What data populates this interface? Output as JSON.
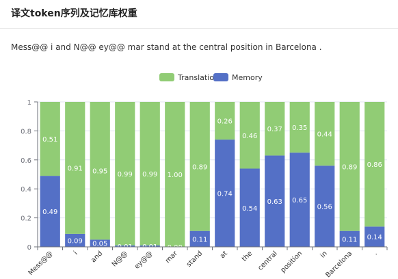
{
  "title": "译文token序列及记忆库权重",
  "sentence": "Mess@@ i and N@@ ey@@ mar stand at the central position in Barcelona .",
  "colors": {
    "translation": "#91cc75",
    "memory": "#5470c6"
  },
  "legend": {
    "translation": "Translation",
    "memory": "Memory"
  },
  "chart_data": {
    "type": "bar",
    "stacked": true,
    "categories": [
      "Mess@@",
      "i",
      "and",
      "N@@",
      "ey@@",
      "mar",
      "stand",
      "at",
      "the",
      "central",
      "position",
      "in",
      "Barcelona",
      "."
    ],
    "series": [
      {
        "name": "Memory",
        "values": [
          0.49,
          0.09,
          0.05,
          0.01,
          0.01,
          0.0,
          0.11,
          0.74,
          0.54,
          0.63,
          0.65,
          0.56,
          0.11,
          0.14
        ]
      },
      {
        "name": "Translation",
        "values": [
          0.51,
          0.91,
          0.95,
          0.99,
          0.99,
          1.0,
          0.89,
          0.26,
          0.46,
          0.37,
          0.35,
          0.44,
          0.89,
          0.86
        ]
      }
    ],
    "memory_labels": [
      "0.49",
      "0.09",
      "0.05",
      "0.01",
      "0.01",
      "0.00",
      "0.11",
      "0.74",
      "0.54",
      "0.63",
      "0.65",
      "0.56",
      "0.11",
      "0.14"
    ],
    "translation_labels": [
      "0.51",
      "0.91",
      "0.95",
      "0.99",
      "0.99",
      "1.00",
      "0.89",
      "0.26",
      "0.46",
      "0.37",
      "0.35",
      "0.44",
      "0.89",
      "0.86"
    ],
    "ylim": [
      0,
      1
    ],
    "yticks": [
      "0",
      "0.2",
      "0.4",
      "0.6",
      "0.8",
      "1"
    ],
    "legend_position": "top-center",
    "grid": true
  }
}
